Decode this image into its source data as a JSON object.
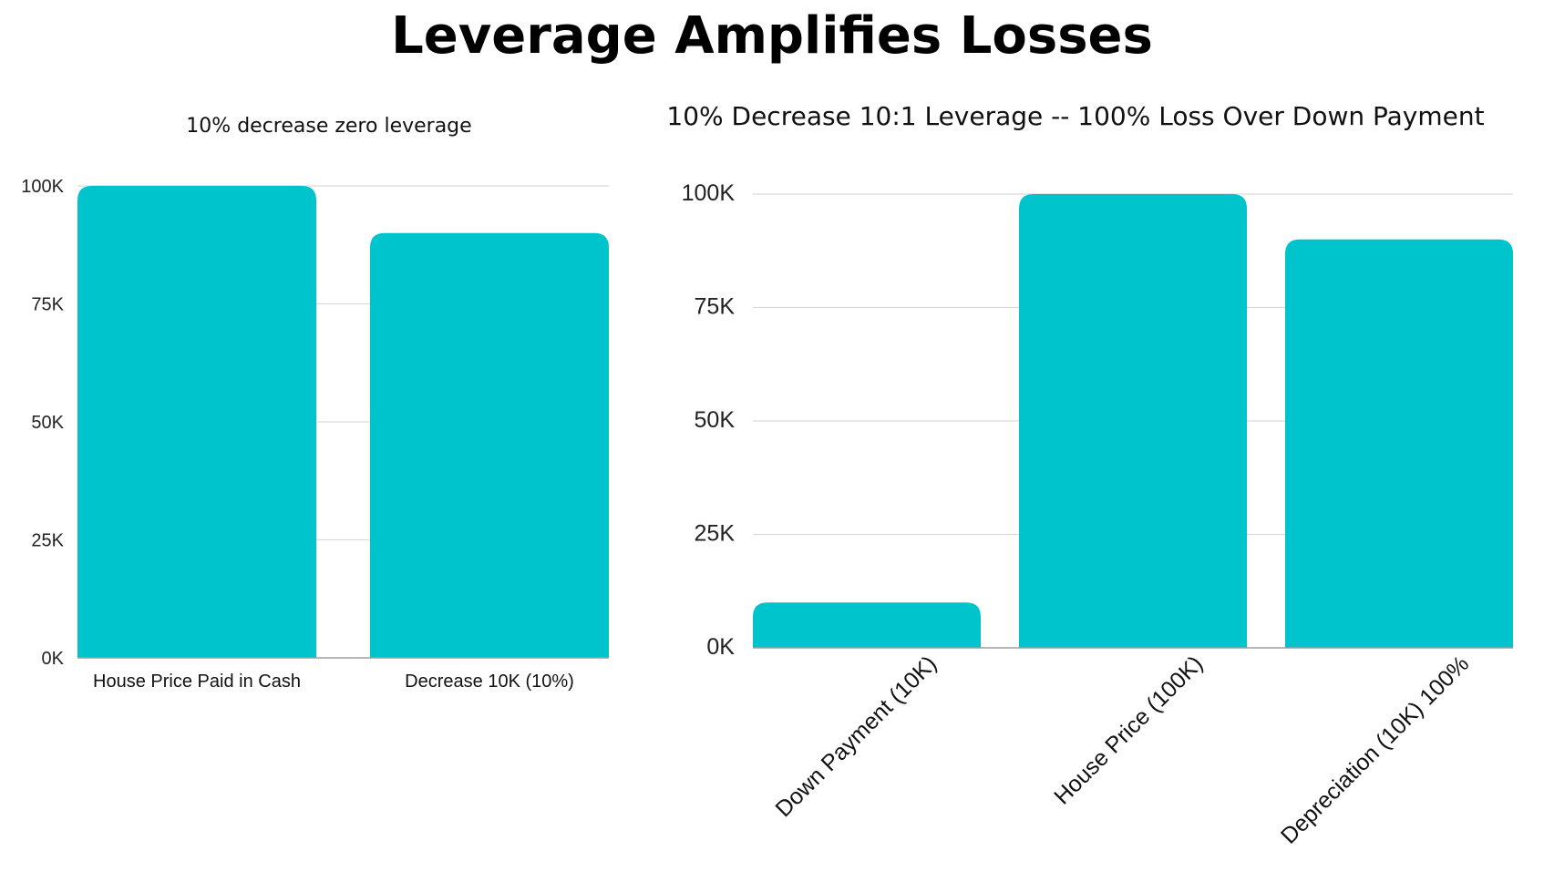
{
  "page": {
    "title": "Leverage Amplifies Losses"
  },
  "colors": {
    "bar": "#00c4cc",
    "grid": "#d9d9d9",
    "axis": "#9e9e9e",
    "text": "#111111"
  },
  "chart_data": [
    {
      "type": "bar",
      "title": "10% decrease zero leverage",
      "categories": [
        "House Price Paid in Cash",
        "Decrease 10K (10%)"
      ],
      "values": [
        100000,
        90000
      ],
      "ylim": [
        0,
        100000
      ],
      "yticks": [
        "0K",
        "25K",
        "50K",
        "75K",
        "100K"
      ],
      "grid": true
    },
    {
      "type": "bar",
      "title": "10% Decrease 10:1 Leverage -- 100% Loss Over Down Payment",
      "categories": [
        "Down Payment (10K)",
        "House Price (100K)",
        "Depreciation (10K)  100%"
      ],
      "values": [
        10000,
        100000,
        90000
      ],
      "ylim": [
        0,
        100000
      ],
      "yticks": [
        "0K",
        "25K",
        "50K",
        "75K",
        "100K"
      ],
      "grid": true
    }
  ]
}
